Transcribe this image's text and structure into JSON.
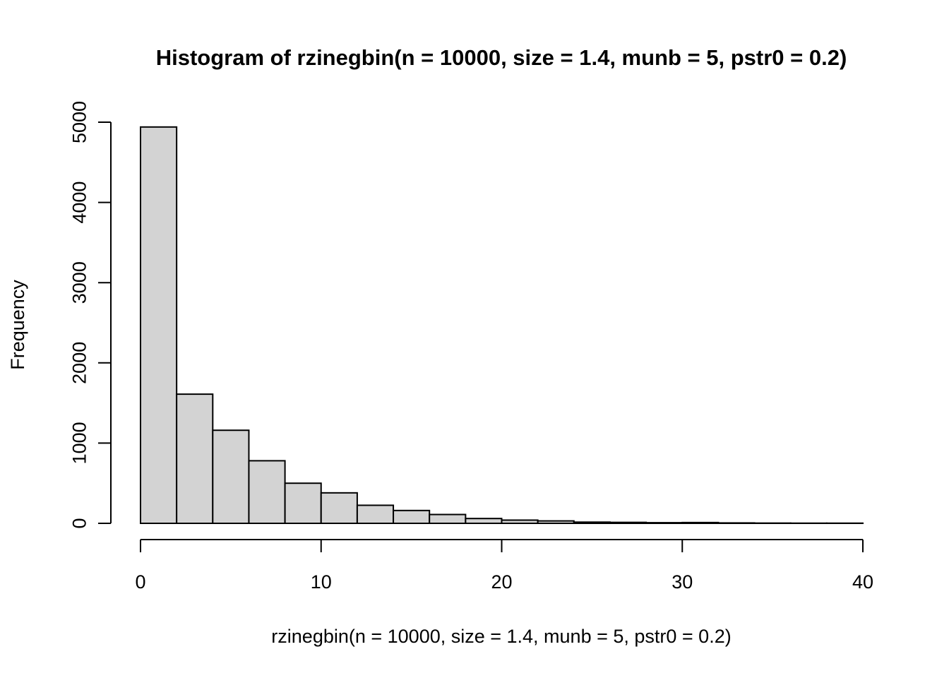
{
  "chart_data": {
    "type": "bar",
    "title": "Histogram of rzinegbin(n = 10000, size = 1.4, munb = 5, pstr0 = 0.2)",
    "xlabel": "rzinegbin(n = 10000, size = 1.4, munb = 5, pstr0 = 0.2)",
    "ylabel": "Frequency",
    "xlim": [
      0,
      40
    ],
    "ylim": [
      0,
      5000
    ],
    "x_ticks": [
      0,
      10,
      20,
      30,
      40
    ],
    "y_ticks": [
      0,
      1000,
      2000,
      3000,
      4000,
      5000
    ],
    "x_tick_labels": [
      "0",
      "10",
      "20",
      "30",
      "40"
    ],
    "y_tick_labels": [
      "0",
      "1000",
      "2000",
      "3000",
      "4000",
      "5000"
    ],
    "bin_edges": [
      0,
      2,
      4,
      6,
      8,
      10,
      12,
      14,
      16,
      18,
      20,
      22,
      24,
      26,
      28,
      30,
      32,
      34,
      36,
      38,
      40
    ],
    "values": [
      4940,
      1610,
      1160,
      780,
      500,
      380,
      225,
      160,
      110,
      60,
      40,
      30,
      15,
      12,
      8,
      10,
      5,
      3,
      2,
      2
    ],
    "bar_fill": "#d3d3d3",
    "bar_stroke": "#000000",
    "grid": false,
    "legend": "none"
  }
}
